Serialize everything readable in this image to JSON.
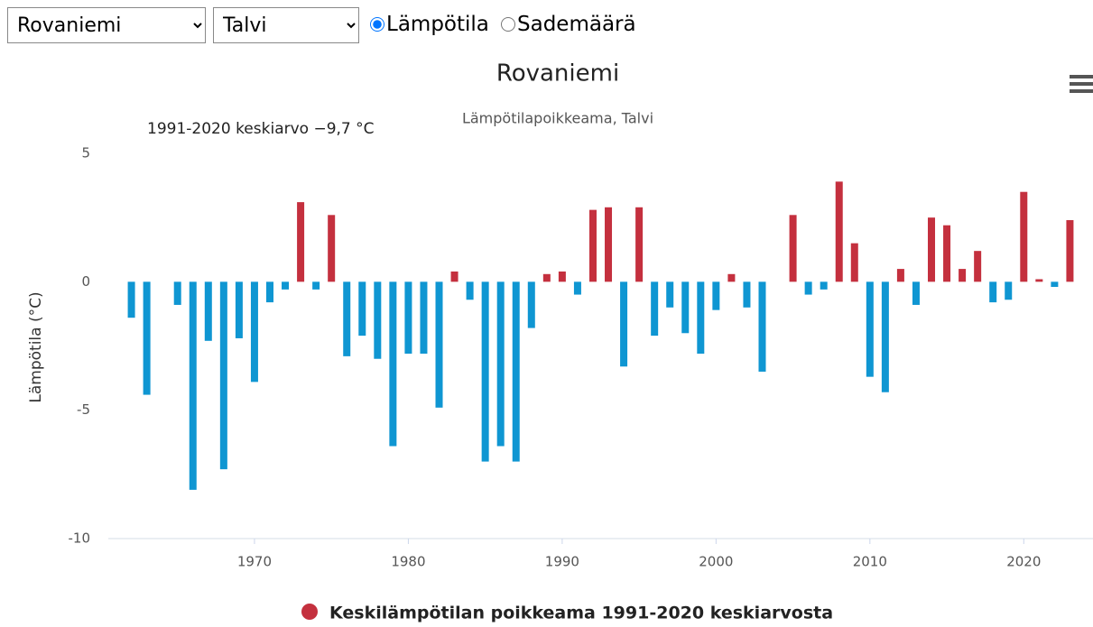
{
  "controls": {
    "location": "Rovaniemi",
    "season": "Talvi",
    "radios": [
      "Lämpötila",
      "Sademäärä"
    ],
    "checked": 0
  },
  "chart_data": {
    "type": "bar",
    "title": "Rovaniemi",
    "subtitle": "Lämpötilapoikkeama, Talvi",
    "annotation": "1991-2020 keskiarvo −9,7 °C",
    "y_label": "Lämpötila (°C)",
    "x": [
      1962,
      1963,
      1965,
      1966,
      1967,
      1968,
      1969,
      1970,
      1971,
      1972,
      1973,
      1974,
      1975,
      1976,
      1977,
      1978,
      1979,
      1980,
      1981,
      1982,
      1983,
      1984,
      1985,
      1986,
      1987,
      1988,
      1989,
      1990,
      1991,
      1992,
      1993,
      1994,
      1995,
      1996,
      1997,
      1998,
      1999,
      2000,
      2001,
      2002,
      2003,
      2005,
      2006,
      2007,
      2008,
      2009,
      2010,
      2011,
      2012,
      2013,
      2014,
      2015,
      2016,
      2017,
      2018,
      2019,
      2020,
      2021,
      2022,
      2023
    ],
    "series": [
      {
        "name": "Keskilämpötilan poikkeama 1991-2020 keskiarvosta",
        "color": "#c4303e",
        "values": [
          -1.4,
          -4.4,
          -0.9,
          -8.1,
          -2.3,
          -7.3,
          -2.2,
          -3.9,
          -0.8,
          -0.3,
          3.1,
          -0.3,
          2.6,
          -2.9,
          -2.1,
          -3.0,
          -6.4,
          -2.8,
          -2.8,
          -4.9,
          0.4,
          -0.7,
          -7.0,
          -6.4,
          -7.0,
          -1.8,
          0.3,
          0.4,
          -0.5,
          2.8,
          2.9,
          -3.3,
          2.9,
          -2.1,
          -1.0,
          -2.0,
          -2.8,
          -1.1,
          0.3,
          -1.0,
          -3.5,
          2.6,
          -0.5,
          -0.3,
          3.9,
          1.5,
          -3.7,
          -4.3,
          0.5,
          -0.9,
          2.5,
          2.2,
          0.5,
          1.2,
          -0.8,
          -0.7,
          3.5,
          0.1,
          -0.2,
          2.4
        ]
      }
    ],
    "negative_color": "#0f96d2",
    "xlim": [
      1960.5,
      2024.5
    ],
    "xticks": [
      1970,
      1980,
      1990,
      2000,
      2010,
      2020
    ],
    "ylim": [
      -10,
      5
    ],
    "yticks": [
      -10,
      -5,
      0,
      5
    ],
    "grid": false
  }
}
